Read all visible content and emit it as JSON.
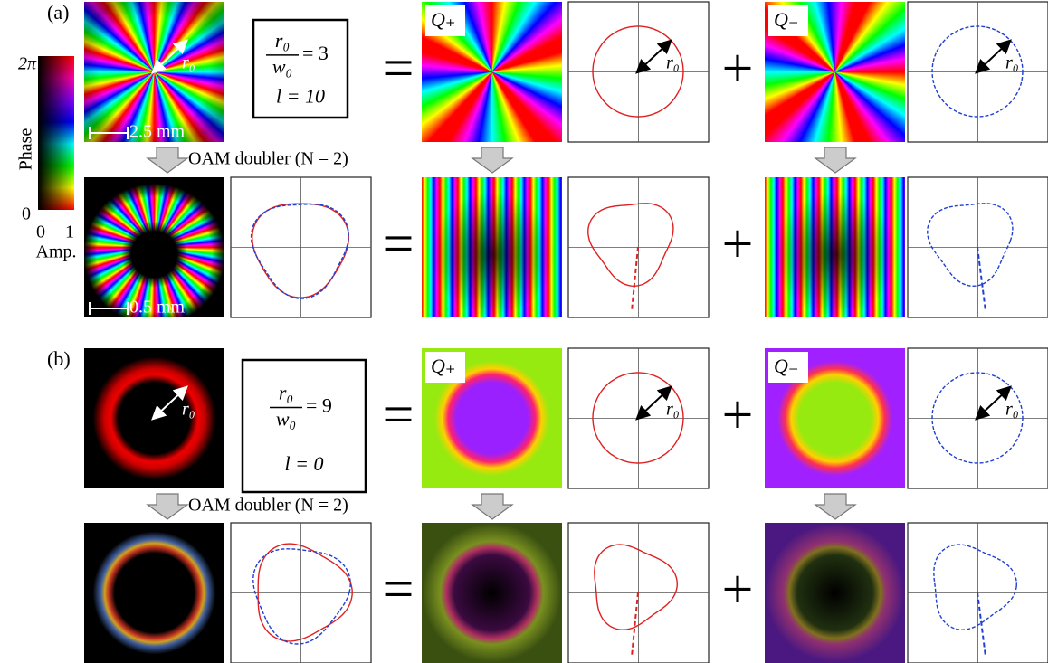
{
  "colorbar": {
    "top": "2π",
    "bottom": "0",
    "label": "Phase",
    "amp_min": "0",
    "amp_max": "1",
    "amp_label": "Amp."
  },
  "panels": [
    {
      "label": "(a)",
      "radius": "r₀",
      "ratio_num": "r₀",
      "ratio_den": "w₀",
      "ratio_value": "= 3",
      "l": "l = 10",
      "step": "OAM doubler (N = 2)",
      "scale_top": "2.5 mm",
      "scale_bottom": "0.5 mm",
      "q_plus": "Q₊",
      "q_minus": "Q₋",
      "equals": "=",
      "plus": "+"
    },
    {
      "label": "(b)",
      "radius": "r₀",
      "ratio_num": "r₀",
      "ratio_den": "w₀",
      "ratio_value": "= 9",
      "l": "l = 0",
      "step": "OAM doubler (N = 2)",
      "q_plus": "Q₊",
      "q_minus": "Q₋",
      "equals": "=",
      "plus": "+"
    }
  ]
}
